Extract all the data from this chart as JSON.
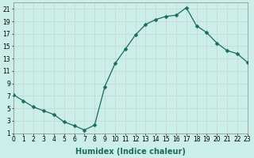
{
  "x": [
    0,
    1,
    2,
    3,
    4,
    5,
    6,
    7,
    8,
    9,
    10,
    11,
    12,
    13,
    14,
    15,
    16,
    17,
    18,
    19,
    20,
    21,
    22,
    23
  ],
  "y": [
    7.2,
    6.2,
    5.2,
    4.6,
    4.0,
    2.8,
    2.2,
    1.5,
    2.3,
    8.5,
    12.2,
    14.5,
    16.8,
    18.5,
    19.3,
    19.8,
    20.0,
    21.2,
    18.3,
    17.2,
    15.5,
    14.3,
    13.8,
    12.4
  ],
  "xlabel": "Humidex (Indice chaleur)",
  "line_color": "#1a6b5a",
  "marker_color": "#1a6b5a",
  "bg_color": "#cceee8",
  "grid_color": "#c8d8d4",
  "xlim": [
    0,
    23
  ],
  "ylim": [
    1,
    22
  ],
  "yticks": [
    1,
    3,
    5,
    7,
    9,
    11,
    13,
    15,
    17,
    19,
    21
  ],
  "xticks": [
    0,
    1,
    2,
    3,
    4,
    5,
    6,
    7,
    8,
    9,
    10,
    11,
    12,
    13,
    14,
    15,
    16,
    17,
    18,
    19,
    20,
    21,
    22,
    23
  ],
  "tick_fontsize": 5.5,
  "xlabel_fontsize": 7,
  "marker_size": 2.5,
  "linewidth": 0.9
}
